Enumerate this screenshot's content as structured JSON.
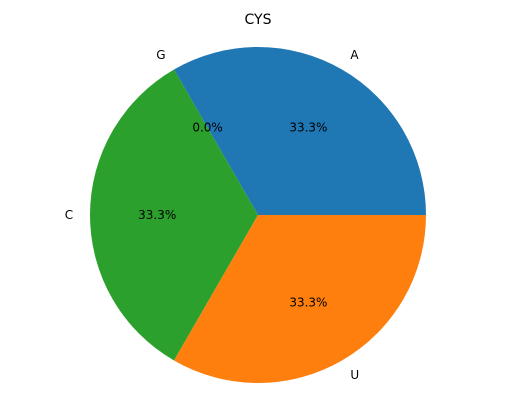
{
  "chart_data": {
    "type": "pie",
    "title": "CYS",
    "categories": [
      "A",
      "G",
      "C",
      "U"
    ],
    "values": [
      33.3,
      0.0,
      33.3,
      33.3
    ],
    "percent_labels": [
      "33.3%",
      "0.0%",
      "33.3%",
      "33.3%"
    ],
    "colors": [
      "#1f77b4",
      "#ff7f0e",
      "#2ca02c",
      "#ff7f0e"
    ],
    "start_angle_deg": 0,
    "direction": "counterclockwise",
    "legend": "none"
  }
}
